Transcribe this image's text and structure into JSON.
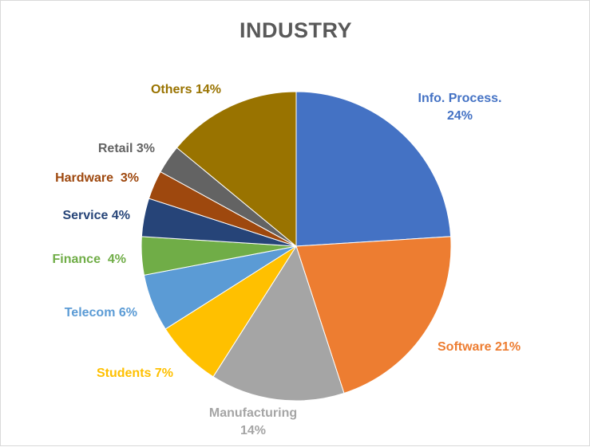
{
  "chart_data": {
    "type": "pie",
    "title": "INDUSTRY",
    "slices": [
      {
        "name": "Info. Process.",
        "value": 24,
        "label": "Info. Process.\n24%",
        "color": "#4472C4"
      },
      {
        "name": "Software",
        "value": 21,
        "label": "Software 21%",
        "color": "#ED7D31"
      },
      {
        "name": "Manufacturing",
        "value": 14,
        "label": "Manufacturing\n14%",
        "color": "#A5A5A5"
      },
      {
        "name": "Students",
        "value": 7,
        "label": "Students 7%",
        "color": "#FFC000"
      },
      {
        "name": "Telecom",
        "value": 6,
        "label": "Telecom 6%",
        "color": "#5B9BD5"
      },
      {
        "name": "Finance",
        "value": 4,
        "label": "Finance  4%",
        "color": "#70AD47"
      },
      {
        "name": "Service",
        "value": 4,
        "label": "Service 4%",
        "color": "#264478"
      },
      {
        "name": "Hardware",
        "value": 3,
        "label": "Hardware  3%",
        "color": "#9E480E"
      },
      {
        "name": "Retail",
        "value": 3,
        "label": "Retail 3%",
        "color": "#636363"
      },
      {
        "name": "Others",
        "value": 14,
        "label": "Others 14%",
        "color": "#997300"
      }
    ],
    "start_angle": "12 o'clock",
    "direction": "clockwise",
    "legend": "none (data labels outside slices)"
  }
}
